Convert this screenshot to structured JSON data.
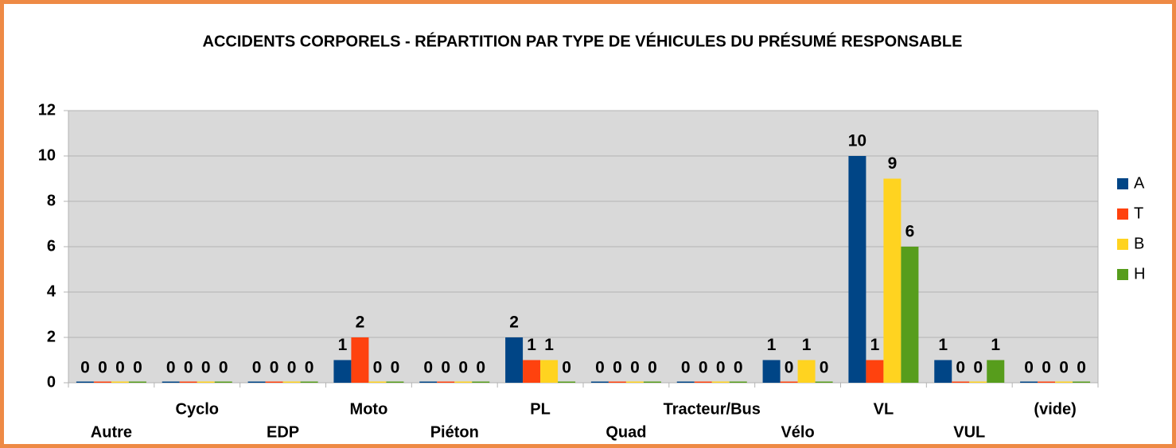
{
  "chart_data": {
    "type": "bar",
    "title": "ACCIDENTS CORPORELS - RÉPARTITION PAR TYPE DE VÉHICULES DU PRÉSUMÉ RESPONSABLE",
    "categories": [
      "Autre",
      "Cyclo",
      "EDP",
      "Moto",
      "Piéton",
      "PL",
      "Quad",
      "Tracteur/Bus",
      "Vélo",
      "VL",
      "VUL",
      "(vide)"
    ],
    "series": [
      {
        "name": "A",
        "color": "#004586",
        "values": [
          0,
          0,
          0,
          1,
          0,
          2,
          0,
          0,
          1,
          10,
          1,
          0
        ]
      },
      {
        "name": "T",
        "color": "#ff420e",
        "values": [
          0,
          0,
          0,
          2,
          0,
          1,
          0,
          0,
          0,
          1,
          0,
          0
        ]
      },
      {
        "name": "B",
        "color": "#ffd320",
        "values": [
          0,
          0,
          0,
          0,
          0,
          1,
          0,
          0,
          1,
          9,
          0,
          0
        ]
      },
      {
        "name": "H",
        "color": "#579d1c",
        "values": [
          0,
          0,
          0,
          0,
          0,
          0,
          0,
          0,
          0,
          6,
          1,
          0
        ]
      }
    ],
    "ylim": [
      0,
      12
    ],
    "yticks": [
      0,
      2,
      4,
      6,
      8,
      10,
      12
    ],
    "grid": true,
    "legend": "right"
  }
}
